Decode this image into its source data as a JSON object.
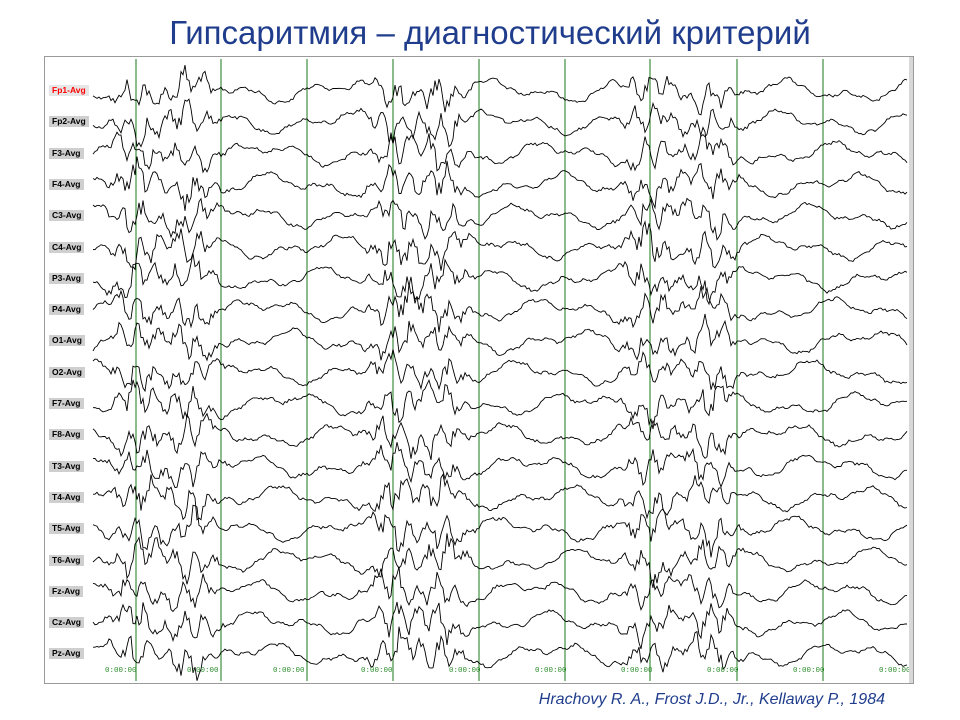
{
  "title": "Гипсаритмия – диагностический критерий",
  "citation": "Hrachovy R. A., Frost J.D., Jr., Kellaway P., 1984",
  "eeg": {
    "active_channel": "Fp1-Avg",
    "channels": [
      "Fp1-Avg",
      "Fp2-Avg",
      "F3-Avg",
      "F4-Avg",
      "C3-Avg",
      "C4-Avg",
      "P3-Avg",
      "P4-Avg",
      "O1-Avg",
      "O2-Avg",
      "F7-Avg",
      "F8-Avg",
      "T3-Avg",
      "T4-Avg",
      "T5-Avg",
      "T6-Avg",
      "Fz-Avg",
      "Cz-Avg",
      "Pz-Avg"
    ],
    "time_labels": [
      "0:00:00",
      "0:00:00",
      "0:00:00",
      "0:00:00",
      "0:00:00",
      "0:00:00",
      "0:00:00",
      "0:00:00",
      "0:00:00",
      "0:00:00"
    ],
    "colors": {
      "trace": "#000000",
      "marker": "#1a7a1a",
      "label_bg": "#cfcfcf",
      "active_label": "#ff0000"
    }
  }
}
